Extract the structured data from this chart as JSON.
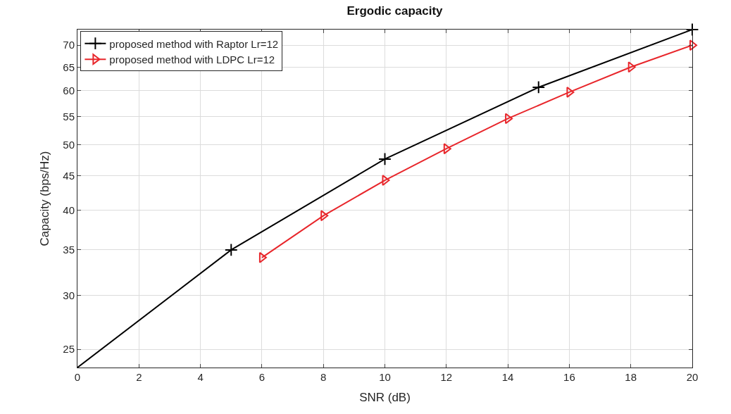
{
  "chart_data": {
    "type": "line",
    "title": "Ergodic capacity",
    "xlabel": "SNR (dB)",
    "ylabel": "Capacity (bps/Hz)",
    "log": "y",
    "xlim": [
      0,
      20
    ],
    "xticks": [
      0,
      2,
      4,
      6,
      8,
      10,
      12,
      14,
      16,
      18,
      20
    ],
    "ylim": [
      23.5,
      73.8
    ],
    "yticks": [
      25,
      30,
      35,
      40,
      45,
      50,
      55,
      60,
      65,
      70
    ],
    "grid": true,
    "legend": "top left",
    "series": [
      {
        "name": "proposed method with Raptor Lr=12",
        "color": "#000000",
        "marker": "cross",
        "x": [
          0,
          5,
          10,
          15,
          20
        ],
        "values": [
          23.5,
          35,
          47.6,
          60.7,
          73.8
        ]
      },
      {
        "name": "proposed method with LDPC Lr=12",
        "color": "#e8262b",
        "marker": "triangle",
        "x": [
          6,
          8,
          10,
          12,
          14,
          16,
          18,
          20
        ],
        "values": [
          34.1,
          39.3,
          44.3,
          49.3,
          54.6,
          59.7,
          65,
          70
        ]
      }
    ]
  }
}
